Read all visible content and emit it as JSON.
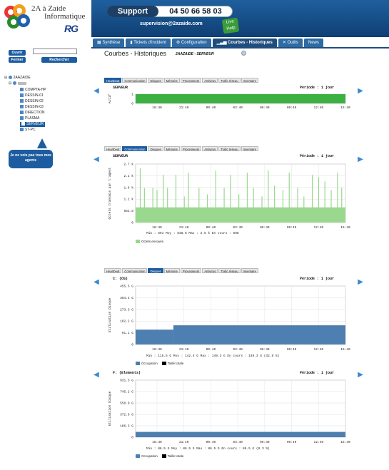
{
  "brand": {
    "title": "2A à Zaide",
    "subtitle": "Informatique",
    "rg_logo": "RG"
  },
  "header": {
    "support_label": "Support",
    "support_phone": "04 50 66 58 03",
    "email": "supervision@2azaide.com",
    "live_badge": "Live Help"
  },
  "nav": {
    "tabs": [
      {
        "label": "Synthèse",
        "icon": "grid-icon"
      },
      {
        "label": "Tickets d'incident",
        "icon": "ticket-icon"
      },
      {
        "label": "Configuration",
        "icon": "gear-icon"
      },
      {
        "label": "Courbes - Historiques",
        "icon": "chart-icon"
      },
      {
        "label": "Outils",
        "icon": "tools-icon"
      },
      {
        "label": "News",
        "icon": ""
      }
    ],
    "active": 3
  },
  "login": {
    "open_label": "Ouvrir",
    "close_label": "Fermer",
    "search_label": "Rechercher",
    "search_value": ""
  },
  "tree": {
    "root": "2AAZAIDE",
    "nodes": [
      "COMPTA-HP",
      "DESSIN-01",
      "DESSIN-02",
      "DESSIN-03",
      "DIRECTION",
      "PLASMA",
      "SERVEUR",
      "ST-PC"
    ],
    "selected": "SERVEUR"
  },
  "help": {
    "text": "Je ne vois pas tous mes agents"
  },
  "main": {
    "title": "Courbes - Historiques",
    "breadcrumb": "2AAZAIDE - SERVEUR"
  },
  "chart_tabs": [
    "Heartbeat",
    "Communication",
    "Disques",
    "Mémoire",
    "Processeurs",
    "Antivirus",
    "Trafic réseau",
    "Inventaire"
  ],
  "colors": {
    "nav": "#2e6aa3",
    "green": "#3cb043",
    "green_light": "#9ad88f",
    "blue_fill": "#4d7fb0",
    "blue_light": "#8fb0d3"
  },
  "charts": [
    {
      "active_tab": 0,
      "title": "SERVEUR",
      "period": "Période : 1 jour",
      "ylabel": "Actif",
      "stats": "",
      "legend": []
    },
    {
      "active_tab": 1,
      "title": "SERVEUR",
      "period": "Période : 1 jour",
      "ylabel": "Octets transmis par l'agent",
      "stats": "Min : 691     Moy : 848.8     Max : 2.5 k     En cours : 698",
      "legend": [
        {
          "label": "Octets envoyés",
          "color": "#9ad88f"
        }
      ]
    },
    {
      "active_tab": 2,
      "title": "C: (OS)",
      "period": "Période : 1 jour",
      "ylabel": "Utilisation Disque",
      "stats": "Min : 115.5 G     Moy : 142.4 G     Max : 149.3 G     En cours : 149.3 G (32.8 %)",
      "legend": [
        {
          "label": "Occupation",
          "color": "#4d7fb0"
        },
        {
          "label": "Taille totale",
          "color": "#000000"
        }
      ]
    },
    {
      "active_tab": -1,
      "title": "F: (Elements)",
      "period": "Période : 1 jour",
      "ylabel": "Utilisation Disque",
      "stats": "Min : 86.5 G     Moy : 86.5 G     Max : 86.5 G     En cours : 86.5 G (9.3 %)",
      "legend": [
        {
          "label": "Occupation",
          "color": "#4d7fb0"
        },
        {
          "label": "Taille totale",
          "color": "#000000"
        }
      ]
    }
  ],
  "chart_data": [
    {
      "type": "area",
      "title": "SERVEUR",
      "ylabel": "Actif",
      "x_ticks": [
        "18:40",
        "21:40",
        "00:40",
        "03:40",
        "06:40",
        "09:40",
        "12:40",
        "15:40"
      ],
      "y_ticks": [
        "0",
        "1"
      ],
      "ylim": [
        0,
        1
      ],
      "value": 1
    },
    {
      "type": "bar",
      "title": "SERVEUR",
      "ylabel": "Octets transmis par l'agent",
      "x_ticks": [
        "18:40",
        "21:40",
        "00:40",
        "03:40",
        "06:40",
        "09:40",
        "12:40",
        "15:40"
      ],
      "y_ticks": [
        "0",
        "562.8",
        "1.1 k",
        "1.6 k",
        "2.2 k",
        "2.7 k"
      ],
      "ylim": [
        0,
        2.7
      ],
      "baseline": 0.7,
      "spikes": [
        [
          0.02,
          2.5
        ],
        [
          0.04,
          1.6
        ],
        [
          0.08,
          1.6
        ],
        [
          0.1,
          1.5
        ],
        [
          0.13,
          2.2
        ],
        [
          0.15,
          1.6
        ],
        [
          0.19,
          2.2
        ],
        [
          0.23,
          1.2
        ],
        [
          0.25,
          2.3
        ],
        [
          0.3,
          1.6
        ],
        [
          0.34,
          1.3
        ],
        [
          0.38,
          2.4
        ],
        [
          0.42,
          1.6
        ],
        [
          0.45,
          2.2
        ],
        [
          0.49,
          1.3
        ],
        [
          0.53,
          2.3
        ],
        [
          0.56,
          1.6
        ],
        [
          0.6,
          1.2
        ],
        [
          0.63,
          2.4
        ],
        [
          0.66,
          1.7
        ],
        [
          0.7,
          1.5
        ],
        [
          0.73,
          2.3
        ],
        [
          0.77,
          1.6
        ],
        [
          0.8,
          1.2
        ],
        [
          0.84,
          2.2
        ],
        [
          0.87,
          2.1
        ],
        [
          0.9,
          1.9
        ],
        [
          0.93,
          1.5
        ],
        [
          0.96,
          2.3
        ],
        [
          0.98,
          1.6
        ]
      ]
    },
    {
      "type": "area",
      "title": "C: (OS)",
      "ylabel": "Utilisation Disque",
      "x_ticks": [
        "18:40",
        "21:40",
        "00:40",
        "03:40",
        "06:40",
        "09:40",
        "12:40",
        "15:40"
      ],
      "y_ticks": [
        "0",
        "91.1 G",
        "182.2 G",
        "273.3 G",
        "364.4 G",
        "455.5 G"
      ],
      "ylim": [
        0,
        455.5
      ],
      "segments": [
        [
          0,
          0.18,
          115.5
        ],
        [
          0.18,
          1.0,
          149.3
        ]
      ]
    },
    {
      "type": "area",
      "title": "F: (Elements)",
      "ylabel": "Utilisation Disque",
      "x_ticks": [
        "18:40",
        "21:40",
        "00:40",
        "03:40",
        "06:40",
        "09:40",
        "12:40",
        "15:40"
      ],
      "y_ticks": [
        "0",
        "186.3 G",
        "372.6 G",
        "558.9 G",
        "745.2 G",
        "931.5 G"
      ],
      "ylim": [
        0,
        931.5
      ],
      "segments": [
        [
          0,
          1.0,
          86.5
        ]
      ]
    }
  ]
}
